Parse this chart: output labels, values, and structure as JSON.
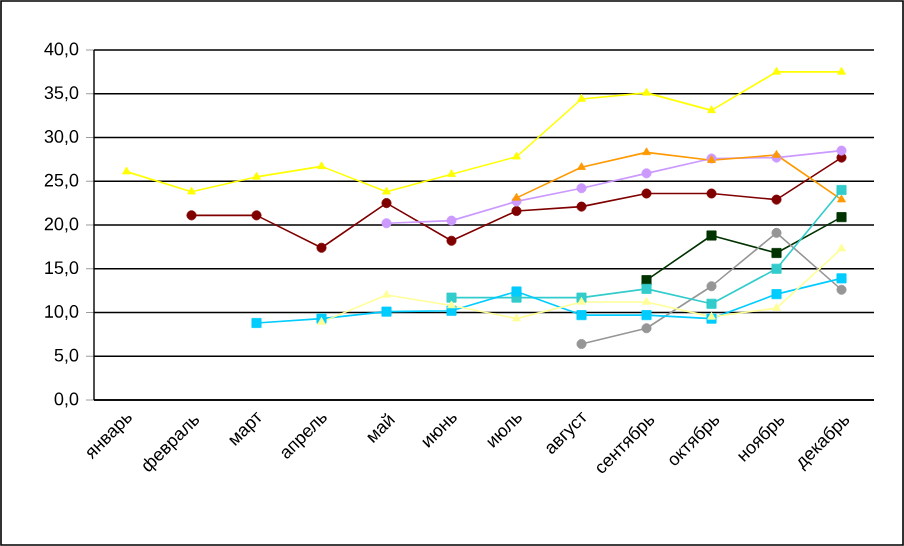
{
  "chart_data": {
    "type": "line",
    "categories": [
      "январь",
      "февраль",
      "март",
      "апрель",
      "май",
      "июнь",
      "июль",
      "август",
      "сентябрь",
      "октябрь",
      "ноябрь",
      "декабрь"
    ],
    "series": [
      {
        "color": "#ffff00",
        "marker": "triangle",
        "values": [
          26.1,
          23.8,
          25.5,
          26.7,
          23.8,
          25.8,
          27.8,
          34.4,
          35.1,
          33.1,
          37.5,
          37.5
        ]
      },
      {
        "color": "#800000",
        "marker": "circle",
        "values": [
          null,
          21.1,
          21.1,
          17.4,
          22.5,
          18.2,
          21.6,
          22.1,
          23.6,
          23.6,
          22.9,
          27.7
        ]
      },
      {
        "color": "#cc99ff",
        "marker": "circle",
        "values": [
          null,
          null,
          null,
          null,
          20.2,
          20.5,
          22.7,
          24.2,
          25.9,
          27.6,
          27.7,
          28.5
        ]
      },
      {
        "color": "#ff9900",
        "marker": "triangle",
        "values": [
          null,
          null,
          null,
          null,
          null,
          null,
          23.1,
          26.6,
          28.3,
          27.4,
          28.0,
          22.9
        ]
      },
      {
        "color": "#003300",
        "marker": "square",
        "values": [
          null,
          null,
          null,
          null,
          null,
          null,
          null,
          null,
          13.7,
          18.8,
          16.8,
          20.9
        ]
      },
      {
        "color": "#969696",
        "marker": "circle",
        "values": [
          null,
          null,
          null,
          null,
          null,
          null,
          null,
          6.4,
          8.2,
          13.0,
          19.1,
          12.6
        ]
      },
      {
        "color": "#33cccc",
        "marker": "square",
        "values": [
          null,
          null,
          null,
          null,
          null,
          11.7,
          11.7,
          11.7,
          12.7,
          11.0,
          15.0,
          24.0
        ]
      },
      {
        "color": "#00ccff",
        "marker": "square",
        "values": [
          null,
          null,
          8.8,
          9.3,
          10.1,
          10.2,
          12.4,
          9.7,
          9.7,
          9.3,
          12.1,
          13.9
        ]
      },
      {
        "color": "#ffff99",
        "marker": "triangle",
        "values": [
          null,
          null,
          null,
          8.9,
          12.0,
          10.8,
          9.3,
          11.2,
          11.2,
          9.5,
          10.5,
          17.3
        ]
      }
    ],
    "ylim": [
      0,
      40
    ],
    "yticks": [
      {
        "value": 0,
        "label": "0,0"
      },
      {
        "value": 5,
        "label": "5,0"
      },
      {
        "value": 10,
        "label": "10,0"
      },
      {
        "value": 15,
        "label": "15,0"
      },
      {
        "value": 20,
        "label": "20,0"
      },
      {
        "value": 25,
        "label": "25,0"
      },
      {
        "value": 30,
        "label": "30,0"
      },
      {
        "value": 35,
        "label": "35,0"
      },
      {
        "value": 40,
        "label": "40,0"
      }
    ],
    "grid": "y"
  }
}
